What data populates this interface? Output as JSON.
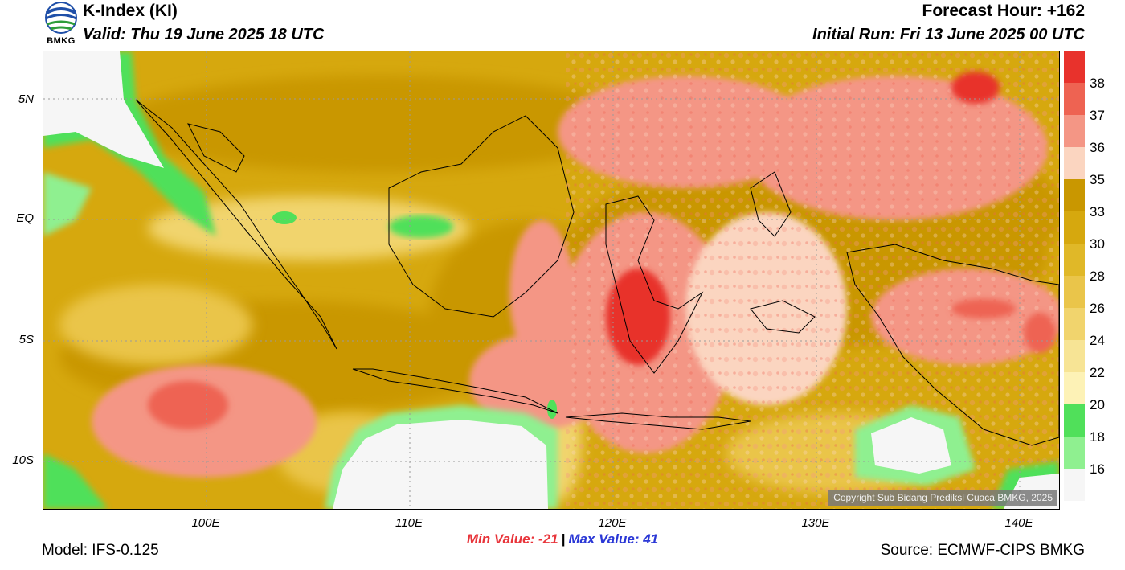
{
  "header": {
    "title": "K-Index (KI)",
    "valid": "Valid: Thu 19 June 2025 18 UTC",
    "forecast_hour": "Forecast Hour: +162",
    "initial_run": "Initial Run: Fri 13 June 2025 00 UTC",
    "logo_text": "BMKG"
  },
  "axes": {
    "lat_labels": [
      "5N",
      "EQ",
      "5S",
      "10S"
    ],
    "lon_labels": [
      "100E",
      "110E",
      "120E",
      "130E",
      "140E"
    ]
  },
  "stats": {
    "min_label": "Min Value: -21",
    "separator": "|",
    "max_label": "Max Value:  41"
  },
  "footer": {
    "model": "Model: IFS-0.125",
    "source": "Source: ECMWF-CIPS BMKG",
    "copyright": "Copyright Sub Bidang Prediksi Cuaca BMKG, 2025"
  },
  "colorbar": {
    "labels": [
      "38",
      "37",
      "36",
      "35",
      "33",
      "30",
      "28",
      "26",
      "24",
      "22",
      "20",
      "18",
      "16"
    ],
    "colors": [
      "#e8322c",
      "#ee6352",
      "#f49685",
      "#fbd5c0",
      "#c99700",
      "#d6a80e",
      "#e0b828",
      "#eac54a",
      "#f1d46d",
      "#f7e495",
      "#fdf2b6",
      "#50e05a",
      "#8ff090",
      "#f6f6f6"
    ]
  }
}
